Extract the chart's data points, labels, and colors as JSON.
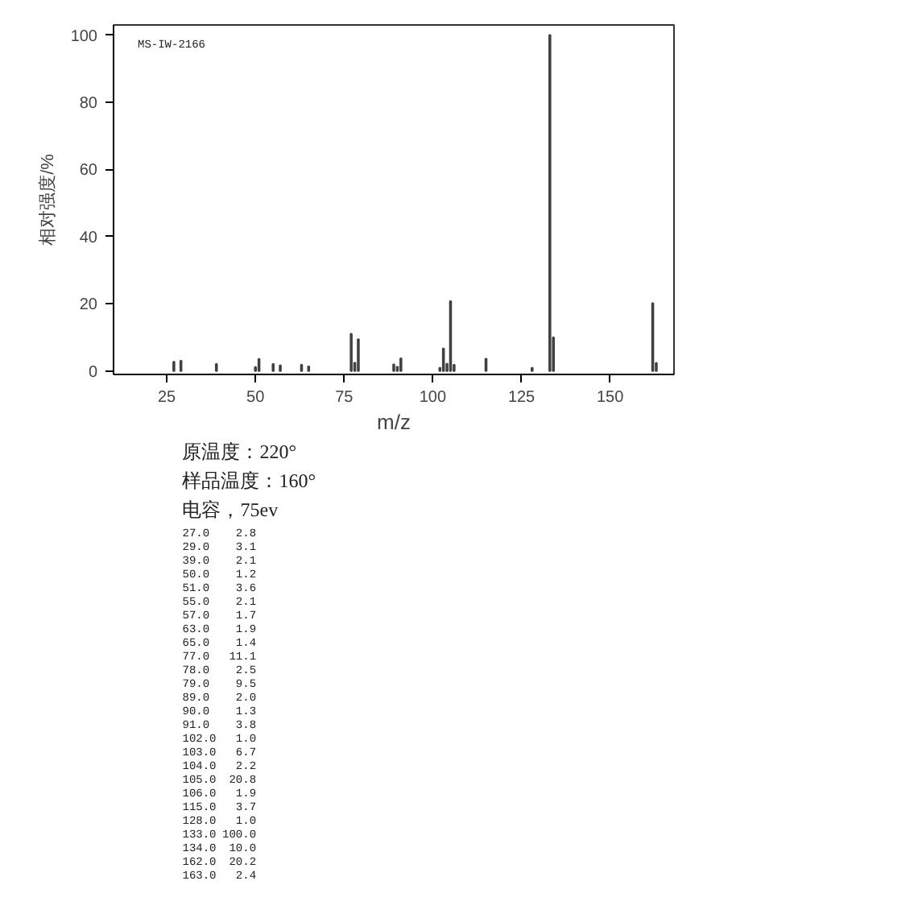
{
  "chart_data": {
    "type": "bar",
    "xlabel": "m/z",
    "ylabel": "相对强度/%",
    "x": [
      27,
      29,
      39,
      50,
      51,
      55,
      57,
      63,
      65,
      77,
      78,
      79,
      89,
      90,
      91,
      102,
      103,
      104,
      105,
      106,
      115,
      128,
      133,
      134,
      162,
      163
    ],
    "values": [
      2.8,
      3.1,
      2.1,
      1.2,
      3.6,
      2.1,
      1.7,
      1.9,
      1.4,
      11.1,
      2.5,
      9.5,
      2.0,
      1.3,
      3.8,
      1.0,
      6.7,
      2.2,
      20.8,
      1.9,
      3.7,
      1.0,
      100.0,
      10.0,
      20.2,
      2.4
    ],
    "color": "#404040",
    "grid": false,
    "xlim": [
      10,
      168
    ],
    "ylim": [
      -1,
      103
    ],
    "xticks": [
      25,
      50,
      75,
      100,
      125,
      150
    ],
    "yticks": [
      0,
      20,
      40,
      60,
      80,
      100
    ],
    "annotations": [
      "MS-IW-2166",
      "原温度：220°",
      "样品温度：160°",
      "电容，75ev",
      "27.0",
      "2.8",
      "29.0",
      "3.1",
      "39.0",
      "2.1",
      "50.0",
      "1.2",
      "51.0",
      "3.6",
      "55.0",
      "2.1",
      "57.0",
      "1.7",
      "63.0",
      "1.9",
      "65.0",
      "1.4",
      "77.0",
      "11.1",
      "78.0",
      "2.5",
      "79.0",
      "9.5",
      "89.0",
      "2.0",
      "90.0",
      "1.3",
      "91.0",
      "3.8",
      "102.0",
      "1.0",
      "103.0",
      "6.7",
      "104.0",
      "2.2",
      "105.0",
      "20.8",
      "106.0",
      "1.9",
      "115.0",
      "3.7",
      "128.0",
      "1.0",
      "133.0",
      "100.0",
      "134.0",
      "10.0",
      "162.0",
      "20.2",
      "163.0",
      "2.4"
    ]
  }
}
